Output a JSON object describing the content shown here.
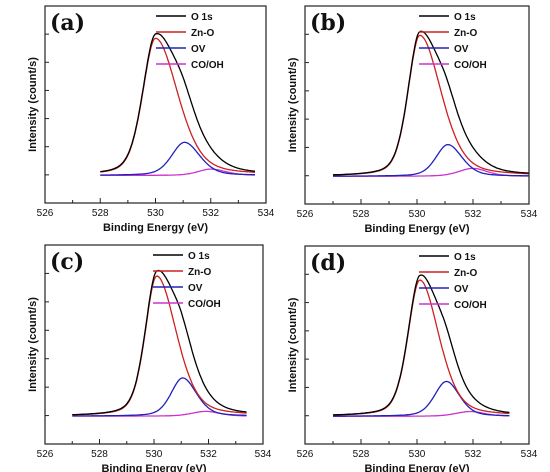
{
  "chart_data": [
    {
      "type": "line",
      "panel_label": "(a)",
      "xlabel": "Binding Energy (eV)",
      "ylabel": "Intensity (count/s)",
      "xlim": [
        526,
        534
      ],
      "ylim": [
        0,
        1.0
      ],
      "x_ticks": [
        526,
        528,
        530,
        532,
        534
      ],
      "x_tick_labels": [
        "526",
        "528",
        "530",
        "532",
        "534"
      ],
      "x_range": [
        528.0,
        533.6
      ],
      "legend_position": "top-right",
      "series": [
        {
          "name": "O 1s",
          "color": "#000000",
          "peaks": []
        },
        {
          "name": "Zn-O",
          "color": "#cc2222",
          "peaks": [
            [
              530.0,
              0.87,
              0.55,
              0.95
            ]
          ]
        },
        {
          "name": "OV",
          "color": "#2222bb",
          "peaks": [
            [
              531.05,
              0.21,
              0.55,
              0.65
            ]
          ]
        },
        {
          "name": "CO/OH",
          "color": "#cc33cc",
          "peaks": [
            [
              532.0,
              0.04,
              0.55,
              0.65
            ]
          ]
        }
      ]
    },
    {
      "type": "line",
      "panel_label": "(b)",
      "xlabel": "Binding Energy (eV)",
      "ylabel": "Intensity (count/s)",
      "xlim": [
        526,
        534
      ],
      "ylim": [
        0,
        1.0
      ],
      "x_ticks": [
        526,
        528,
        530,
        532,
        534
      ],
      "x_tick_labels": [
        "526",
        "528",
        "530",
        "532",
        "534"
      ],
      "x_range": [
        527.0,
        534.0
      ],
      "legend_position": "top-right",
      "series": [
        {
          "name": "O 1s",
          "color": "#000000",
          "peaks": []
        },
        {
          "name": "Zn-O",
          "color": "#cc2222",
          "peaks": [
            [
              530.1,
              0.89,
              0.5,
              0.9
            ]
          ]
        },
        {
          "name": "OV",
          "color": "#2222bb",
          "peaks": [
            [
              531.1,
              0.2,
              0.5,
              0.6
            ]
          ]
        },
        {
          "name": "CO/OH",
          "color": "#cc33cc",
          "peaks": [
            [
              532.0,
              0.05,
              0.6,
              0.6
            ]
          ]
        }
      ]
    },
    {
      "type": "line",
      "panel_label": "(c)",
      "xlabel": "Binding Energy (eV)",
      "ylabel": "Intensity (count/s)",
      "xlim": [
        526,
        534
      ],
      "ylim": [
        0,
        1.0
      ],
      "x_ticks": [
        526,
        528,
        530,
        532,
        534
      ],
      "x_tick_labels": [
        "526",
        "528",
        "530",
        "532",
        "534"
      ],
      "x_range": [
        527.0,
        533.4
      ],
      "legend_position": "top-right",
      "series": [
        {
          "name": "O 1s",
          "color": "#000000",
          "peaks": []
        },
        {
          "name": "Zn-O",
          "color": "#cc2222",
          "peaks": [
            [
              530.1,
              0.88,
              0.5,
              0.85
            ]
          ]
        },
        {
          "name": "OV",
          "color": "#2222bb",
          "peaks": [
            [
              531.05,
              0.24,
              0.5,
              0.6
            ]
          ]
        },
        {
          "name": "CO/OH",
          "color": "#cc33cc",
          "peaks": [
            [
              531.9,
              0.03,
              0.6,
              0.6
            ]
          ]
        }
      ]
    },
    {
      "type": "line",
      "panel_label": "(d)",
      "xlabel": "Binding Energy (eV)",
      "ylabel": "Intensity (count/s)",
      "xlim": [
        526,
        534
      ],
      "ylim": [
        0,
        1.0
      ],
      "x_ticks": [
        526,
        528,
        530,
        532,
        534
      ],
      "x_tick_labels": [
        "526",
        "528",
        "530",
        "532",
        "534"
      ],
      "x_range": [
        527.0,
        533.3
      ],
      "legend_position": "top-right",
      "series": [
        {
          "name": "O 1s",
          "color": "#000000",
          "peaks": []
        },
        {
          "name": "Zn-O",
          "color": "#cc2222",
          "peaks": [
            [
              530.1,
              0.86,
              0.5,
              0.8
            ]
          ]
        },
        {
          "name": "OV",
          "color": "#2222bb",
          "peaks": [
            [
              531.05,
              0.22,
              0.5,
              0.55
            ]
          ]
        },
        {
          "name": "CO/OH",
          "color": "#cc33cc",
          "peaks": [
            [
              531.9,
              0.03,
              0.6,
              0.6
            ]
          ]
        }
      ]
    }
  ]
}
